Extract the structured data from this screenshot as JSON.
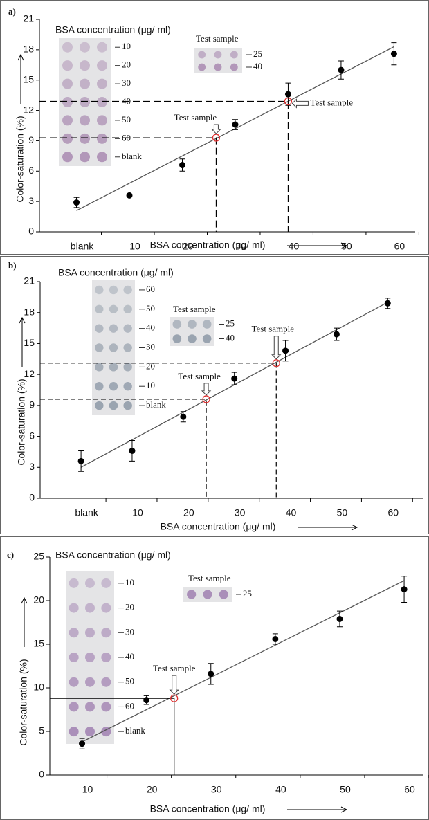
{
  "chart_data": [
    {
      "type": "scatter",
      "panel_label": "a)",
      "x_label": "BSA concentration (μg/ ml)",
      "y_label": "Color-saturation (%)",
      "xlim": [
        -7,
        64
      ],
      "ylim": [
        0,
        21
      ],
      "xticks": [
        {
          "value": 0,
          "label": "blank"
        },
        10,
        20,
        30,
        40,
        50,
        60
      ],
      "yticks": [
        0,
        3,
        6,
        9,
        12,
        15,
        18,
        21
      ],
      "x": [
        0,
        10,
        20,
        30,
        40,
        50,
        60
      ],
      "values": [
        2.9,
        3.6,
        6.6,
        10.6,
        13.6,
        16.0,
        17.6
      ],
      "errors": [
        0.5,
        null,
        0.6,
        0.5,
        1.1,
        0.9,
        1.1
      ],
      "color": "#000000",
      "fit_line": {
        "x": [
          0,
          60
        ],
        "y": [
          2.1,
          18.3
        ],
        "color": "#555555"
      },
      "test_samples": {
        "x": [
          26.4,
          40
        ],
        "y": [
          9.3,
          12.9
        ],
        "color": "#e03030",
        "labels": [
          "Test sample",
          "Test sample"
        ]
      },
      "inset": {
        "title": "BSA concentration (μg/ ml)",
        "labels": [
          "10",
          "20",
          "30",
          "40",
          "50",
          "60",
          "blank"
        ],
        "color": "#a98ab0"
      },
      "test_inset": {
        "title": "Test sample",
        "labels": [
          "25",
          "40"
        ]
      }
    },
    {
      "type": "scatter",
      "panel_label": "b)",
      "x_label": "BSA concentration (μg/ ml)",
      "y_label": "Color-saturation (%)",
      "xlim": [
        -8,
        67
      ],
      "ylim": [
        0,
        21
      ],
      "xticks": [
        {
          "value": 0,
          "label": "blank"
        },
        10,
        20,
        30,
        40,
        50,
        60
      ],
      "yticks": [
        0,
        3,
        6,
        9,
        12,
        15,
        18,
        21
      ],
      "x": [
        0,
        10,
        20,
        30,
        40,
        50,
        60
      ],
      "values": [
        3.6,
        4.6,
        7.9,
        11.6,
        14.3,
        15.9,
        18.9
      ],
      "errors": [
        1.0,
        1.0,
        0.5,
        0.6,
        1.0,
        0.6,
        0.5
      ],
      "color": "#000000",
      "fit_line": {
        "x": [
          0,
          60
        ],
        "y": [
          3.0,
          19.0
        ],
        "color": "#555555"
      },
      "test_samples": {
        "x": [
          24.5,
          38.2
        ],
        "y": [
          9.6,
          13.1
        ],
        "color": "#e03030",
        "labels": [
          "Test sample",
          "Test sample"
        ]
      },
      "inset": {
        "title": "BSA concentration (μg/ ml)",
        "labels": [
          "60",
          "50",
          "40",
          "30",
          "20",
          "10",
          "blank"
        ],
        "color": "#8d99a6"
      },
      "test_inset": {
        "title": "Test sample",
        "labels": [
          "25",
          "40"
        ]
      }
    },
    {
      "type": "scatter",
      "panel_label": "c)",
      "x_label": "BSA concentration (μg/ ml)",
      "y_label": "Color-saturation (%)",
      "xlim": [
        5,
        63
      ],
      "ylim": [
        0,
        25
      ],
      "xticks": [
        10,
        20,
        30,
        40,
        50,
        60
      ],
      "yticks": [
        0,
        5,
        10,
        15,
        20,
        25
      ],
      "x": [
        10,
        20,
        30,
        40,
        50,
        60
      ],
      "values": [
        3.6,
        8.6,
        11.6,
        15.6,
        17.9,
        21.3
      ],
      "errors": [
        0.6,
        0.5,
        1.2,
        0.6,
        0.9,
        1.5
      ],
      "color": "#000000",
      "fit_line": {
        "x": [
          10,
          60
        ],
        "y": [
          3.8,
          22.3
        ],
        "color": "#555555"
      },
      "test_samples": {
        "x": [
          24.3
        ],
        "y": [
          8.8
        ],
        "color": "#e03030",
        "labels": [
          "Test sample"
        ]
      },
      "inset": {
        "title": "BSA concentration (μg/ ml)",
        "labels": [
          "10",
          "20",
          "30",
          "40",
          "50",
          "60",
          "blank"
        ],
        "color": "#a080b0"
      },
      "test_inset": {
        "title": "Test sample",
        "labels": [
          "25"
        ]
      }
    }
  ]
}
